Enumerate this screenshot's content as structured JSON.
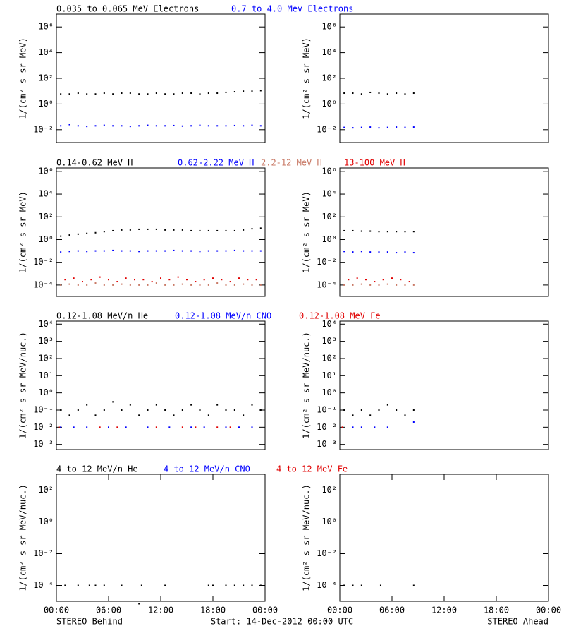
{
  "chart_data": [
    {
      "type": "scatter",
      "ylabel": "1/(cm² s sr MeV)",
      "yscale": "log",
      "xlim": [
        0,
        24
      ],
      "ylim": [
        0.001,
        10000000
      ],
      "yticks": [
        {
          "value": 0.01,
          "label": "10⁻²"
        },
        {
          "value": 1,
          "label": "10⁰"
        },
        {
          "value": 100,
          "label": "10²"
        },
        {
          "value": 10000,
          "label": "10⁴"
        },
        {
          "value": 1000000,
          "label": "10⁶"
        }
      ],
      "series": [
        {
          "name": "0.035 to 0.065 MeV Electrons",
          "color": "#000000",
          "x": [
            0.5,
            1.5,
            2.5,
            3.5,
            4.5,
            5.5,
            6.5,
            7.5,
            8.5,
            9.5,
            10.5,
            11.5,
            12.5,
            13.5,
            14.5,
            15.5,
            16.5,
            17.5,
            18.5,
            19.5,
            20.5,
            21.5,
            22.5,
            23.5
          ],
          "values": [
            6,
            6,
            7,
            6,
            6,
            7,
            6,
            7,
            7,
            6,
            6,
            7,
            6,
            6,
            7,
            7,
            6,
            7,
            7,
            8,
            9,
            10,
            10,
            11
          ]
        },
        {
          "name": "0.7 to 4.0 Mev Electrons",
          "color": "#0000ff",
          "x": [
            0.5,
            1.5,
            2.5,
            3.5,
            4.5,
            5.5,
            6.5,
            7.5,
            8.5,
            9.5,
            10.5,
            11.5,
            12.5,
            13.5,
            14.5,
            15.5,
            16.5,
            17.5,
            18.5,
            19.5,
            20.5,
            21.5,
            22.5,
            23.5
          ],
          "values": [
            0.02,
            0.025,
            0.02,
            0.018,
            0.02,
            0.022,
            0.02,
            0.02,
            0.018,
            0.02,
            0.022,
            0.02,
            0.02,
            0.021,
            0.019,
            0.02,
            0.022,
            0.02,
            0.02,
            0.02,
            0.021,
            0.02,
            0.022,
            0.02
          ]
        }
      ]
    },
    {
      "type": "scatter",
      "ylabel": "1/(cm² s sr MeV)",
      "yscale": "log",
      "xlim": [
        0,
        24
      ],
      "ylim": [
        0.001,
        10000000
      ],
      "yticks": [
        {
          "value": 0.01,
          "label": "10⁻²"
        },
        {
          "value": 1,
          "label": "10⁰"
        },
        {
          "value": 100,
          "label": "10²"
        },
        {
          "value": 10000,
          "label": "10⁴"
        },
        {
          "value": 1000000,
          "label": "10⁶"
        }
      ],
      "series": [
        {
          "color": "#000000",
          "x": [
            0.5,
            1.5,
            2.5,
            3.5,
            4.5,
            5.5,
            6.5,
            7.5,
            8.5
          ],
          "values": [
            7,
            7,
            6,
            8,
            7,
            6,
            7,
            6,
            7
          ]
        },
        {
          "color": "#0000ff",
          "x": [
            0.5,
            1.5,
            2.5,
            3.5,
            4.5,
            5.5,
            6.5,
            7.5,
            8.5
          ],
          "values": [
            0.015,
            0.014,
            0.015,
            0.016,
            0.014,
            0.015,
            0.016,
            0.015,
            0.016
          ]
        }
      ]
    },
    {
      "type": "scatter",
      "ylabel": "1/(cm² s sr MeV)",
      "yscale": "log",
      "xlim": [
        0,
        24
      ],
      "ylim": [
        1e-05,
        2000000
      ],
      "yticks": [
        {
          "value": 0.0001,
          "label": "10⁻⁴"
        },
        {
          "value": 0.01,
          "label": "10⁻²"
        },
        {
          "value": 1,
          "label": "10⁰"
        },
        {
          "value": 100,
          "label": "10²"
        },
        {
          "value": 10000,
          "label": "10⁴"
        },
        {
          "value": 1000000,
          "label": "10⁶"
        }
      ],
      "series": [
        {
          "name": "0.14-0.62 MeV H",
          "color": "#000000",
          "x": [
            0.5,
            1.5,
            2.5,
            3.5,
            4.5,
            5.5,
            6.5,
            7.5,
            8.5,
            9.5,
            10.5,
            11.5,
            12.5,
            13.5,
            14.5,
            15.5,
            16.5,
            17.5,
            18.5,
            19.5,
            20.5,
            21.5,
            22.5,
            23.5
          ],
          "values": [
            2,
            2.5,
            3,
            3.5,
            4,
            5,
            6,
            7,
            7,
            8,
            8,
            8,
            7,
            7,
            7,
            6,
            6,
            6,
            6,
            6,
            6,
            7,
            9,
            10
          ]
        },
        {
          "name": "0.62-2.22 MeV H",
          "color": "#0000ff",
          "x": [
            0.5,
            1.5,
            2.5,
            3.5,
            4.5,
            5.5,
            6.5,
            7.5,
            8.5,
            9.5,
            10.5,
            11.5,
            12.5,
            13.5,
            14.5,
            15.5,
            16.5,
            17.5,
            18.5,
            19.5,
            20.5,
            21.5,
            22.5,
            23.5
          ],
          "values": [
            0.08,
            0.09,
            0.1,
            0.09,
            0.1,
            0.1,
            0.11,
            0.1,
            0.1,
            0.09,
            0.1,
            0.1,
            0.1,
            0.11,
            0.1,
            0.1,
            0.09,
            0.1,
            0.1,
            0.1,
            0.11,
            0.1,
            0.1,
            0.1
          ]
        },
        {
          "name": "2.2-12 MeV H",
          "color": "#c87864",
          "x": [
            0.5,
            1.5,
            2.5,
            3.5,
            4.5,
            5.5,
            6.5,
            7.5,
            8.5,
            9.5,
            10.5,
            11.5,
            12.5,
            13.5,
            14.5,
            15.5,
            16.5,
            17.5,
            18.5,
            19.5,
            20.5,
            21.5,
            22.5,
            23.5
          ],
          "values": [
            0.0001,
            0.00012,
            0.0001,
            0.0001,
            0.00015,
            0.0001,
            0.0001,
            0.00012,
            0.0001,
            0.0001,
            0.0001,
            0.00015,
            0.0001,
            0.0001,
            0.00012,
            0.0001,
            0.0001,
            0.0001,
            0.00015,
            0.0001,
            0.0001,
            0.00012,
            0.0001,
            0.0001
          ]
        },
        {
          "name": "13-100 MeV H",
          "color": "#e00000",
          "x": [
            1,
            2,
            3,
            4,
            5,
            6,
            7,
            8,
            9,
            10,
            11,
            12,
            13,
            14,
            15,
            16,
            17,
            18,
            19,
            20,
            21,
            22,
            23
          ],
          "values": [
            0.0003,
            0.0004,
            0.0002,
            0.0003,
            0.0005,
            0.0003,
            0.0002,
            0.0004,
            0.0003,
            0.0003,
            0.0002,
            0.0004,
            0.0003,
            0.0005,
            0.0003,
            0.0002,
            0.0003,
            0.0004,
            0.0003,
            0.0002,
            0.0004,
            0.0003,
            0.0003
          ]
        }
      ]
    },
    {
      "type": "scatter",
      "ylabel": "1/(cm² s sr MeV)",
      "yscale": "log",
      "xlim": [
        0,
        24
      ],
      "ylim": [
        1e-05,
        2000000
      ],
      "yticks": [
        {
          "value": 0.0001,
          "label": "10⁻⁴"
        },
        {
          "value": 0.01,
          "label": "10⁻²"
        },
        {
          "value": 1,
          "label": "10⁰"
        },
        {
          "value": 100,
          "label": "10²"
        },
        {
          "value": 10000,
          "label": "10⁴"
        },
        {
          "value": 1000000,
          "label": "10⁶"
        }
      ],
      "series": [
        {
          "color": "#000000",
          "x": [
            0.5,
            1.5,
            2.5,
            3.5,
            4.5,
            5.5,
            6.5,
            7.5,
            8.5
          ],
          "values": [
            6,
            6,
            5.5,
            5.5,
            5,
            5,
            5,
            5,
            5
          ]
        },
        {
          "color": "#0000ff",
          "x": [
            0.5,
            1.5,
            2.5,
            3.5,
            4.5,
            5.5,
            6.5,
            7.5,
            8.5
          ],
          "values": [
            0.09,
            0.08,
            0.09,
            0.08,
            0.08,
            0.08,
            0.07,
            0.08,
            0.07
          ]
        },
        {
          "color": "#c87864",
          "x": [
            0.5,
            1.5,
            2.5,
            3.5,
            4.5,
            5.5,
            6.5,
            7.5,
            8.5
          ],
          "values": [
            0.0001,
            0.0001,
            0.00012,
            0.0001,
            0.0001,
            0.00012,
            0.0001,
            0.0001,
            0.0001
          ]
        },
        {
          "color": "#e00000",
          "x": [
            1,
            2,
            3,
            4,
            5,
            6,
            7,
            8
          ],
          "values": [
            0.0003,
            0.0004,
            0.0003,
            0.0002,
            0.0003,
            0.0004,
            0.0003,
            0.0002
          ]
        }
      ]
    },
    {
      "type": "scatter",
      "ylabel": "1/(cm² s sr MeV/nuc.)",
      "yscale": "log",
      "xlim": [
        0,
        24
      ],
      "ylim": [
        0.0005,
        15000
      ],
      "yticks": [
        {
          "value": 0.001,
          "label": "10⁻³"
        },
        {
          "value": 0.01,
          "label": "10⁻²"
        },
        {
          "value": 0.1,
          "label": "10⁻¹"
        },
        {
          "value": 1,
          "label": "10⁰"
        },
        {
          "value": 10,
          "label": "10¹"
        },
        {
          "value": 100,
          "label": "10²"
        },
        {
          "value": 1000,
          "label": "10³"
        },
        {
          "value": 10000,
          "label": "10⁴"
        }
      ],
      "series": [
        {
          "name": "0.12-1.08 MeV/n He",
          "color": "#000000",
          "x": [
            0.5,
            1.5,
            2.5,
            3.5,
            4.5,
            5.5,
            6.5,
            7.5,
            8.5,
            9.5,
            10.5,
            11.5,
            12.5,
            13.5,
            14.5,
            15.5,
            16.5,
            17.5,
            18.5,
            19.5,
            20.5,
            21.5,
            22.5,
            23.5
          ],
          "values": [
            0.1,
            0.05,
            0.1,
            0.2,
            0.05,
            0.1,
            0.3,
            0.1,
            0.2,
            0.05,
            0.1,
            0.2,
            0.1,
            0.05,
            0.1,
            0.2,
            0.1,
            0.05,
            0.2,
            0.1,
            0.1,
            0.05,
            0.2,
            0.1
          ]
        },
        {
          "name": "0.12-1.08 MeV/n CNO",
          "color": "#0000ff",
          "x": [
            0.5,
            2,
            3.5,
            6,
            8,
            10.5,
            13,
            15.5,
            17,
            19.5,
            21,
            22.5
          ],
          "values": [
            0.01,
            0.01,
            0.01,
            0.01,
            0.01,
            0.01,
            0.01,
            0.01,
            0.01,
            0.01,
            0.01,
            0.01
          ]
        },
        {
          "name": "0.12-1.08 MeV Fe",
          "color": "#e00000",
          "x": [
            0.3,
            5,
            7,
            11.5,
            14.5,
            16,
            18.5,
            20
          ],
          "values": [
            0.01,
            0.01,
            0.01,
            0.01,
            0.01,
            0.01,
            0.01,
            0.01
          ]
        }
      ]
    },
    {
      "type": "scatter",
      "ylabel": "1/(cm² s sr MeV/nuc.)",
      "yscale": "log",
      "xlim": [
        0,
        24
      ],
      "ylim": [
        0.0005,
        15000
      ],
      "yticks": [
        {
          "value": 0.001,
          "label": "10⁻³"
        },
        {
          "value": 0.01,
          "label": "10⁻²"
        },
        {
          "value": 0.1,
          "label": "10⁻¹"
        },
        {
          "value": 1,
          "label": "10⁰"
        },
        {
          "value": 10,
          "label": "10¹"
        },
        {
          "value": 100,
          "label": "10²"
        },
        {
          "value": 1000,
          "label": "10³"
        },
        {
          "value": 10000,
          "label": "10⁴"
        }
      ],
      "series": [
        {
          "color": "#000000",
          "x": [
            0.5,
            1.5,
            2.5,
            3.5,
            4.5,
            5.5,
            6.5,
            7.5,
            8.5
          ],
          "values": [
            0.1,
            0.05,
            0.1,
            0.05,
            0.1,
            0.2,
            0.1,
            0.05,
            0.1
          ]
        },
        {
          "color": "#0000ff",
          "x": [
            1.5,
            2.5,
            4,
            5.5,
            8.5
          ],
          "values": [
            0.01,
            0.01,
            0.01,
            0.01,
            0.02
          ]
        },
        {
          "color": "#e00000",
          "x": [
            0.3
          ],
          "values": [
            0.01
          ]
        }
      ]
    },
    {
      "type": "scatter",
      "ylabel": "1/(cm² s sr MeV/nuc.)",
      "yscale": "log",
      "xlim": [
        0,
        24
      ],
      "ylim": [
        1e-05,
        1000
      ],
      "yticks": [
        {
          "value": 0.0001,
          "label": "10⁻⁴"
        },
        {
          "value": 0.01,
          "label": "10⁻²"
        },
        {
          "value": 1,
          "label": "10⁰"
        },
        {
          "value": 100,
          "label": "10²"
        }
      ],
      "xticks": [
        {
          "value": 0,
          "label": "00:00"
        },
        {
          "value": 6,
          "label": "06:00"
        },
        {
          "value": 12,
          "label": "12:00"
        },
        {
          "value": 18,
          "label": "18:00"
        },
        {
          "value": 24,
          "label": "00:00"
        }
      ],
      "annotation": "STEREO Behind",
      "series": [
        {
          "name": "4 to 12 MeV/n He",
          "color": "#000000",
          "x": [
            1,
            2.5,
            3.8,
            4.5,
            5.5,
            7.5,
            9.5,
            9.8,
            12.5,
            17.5,
            18,
            19.5,
            20.5,
            21.5,
            22.5,
            23.5
          ],
          "values": [
            0.0001,
            0.0001,
            0.0001,
            0.0001,
            0.0001,
            0.0001,
            7e-06,
            0.0001,
            0.0001,
            0.0001,
            0.0001,
            0.0001,
            0.0001,
            0.0001,
            0.0001,
            0.0001
          ]
        },
        {
          "name": "4 to 12 MeV/n CNO",
          "color": "#0000ff",
          "x": [],
          "values": []
        },
        {
          "name": "4 to 12 MeV Fe",
          "color": "#e00000",
          "x": [],
          "values": []
        }
      ]
    },
    {
      "type": "scatter",
      "ylabel": "1/(cm² s sr MeV/nuc.)",
      "yscale": "log",
      "xlim": [
        0,
        24
      ],
      "ylim": [
        1e-05,
        1000
      ],
      "yticks": [
        {
          "value": 0.0001,
          "label": "10⁻⁴"
        },
        {
          "value": 0.01,
          "label": "10⁻²"
        },
        {
          "value": 1,
          "label": "10⁰"
        },
        {
          "value": 100,
          "label": "10²"
        }
      ],
      "xticks": [
        {
          "value": 0,
          "label": "00:00"
        },
        {
          "value": 6,
          "label": "06:00"
        },
        {
          "value": 12,
          "label": "12:00"
        },
        {
          "value": 18,
          "label": "18:00"
        },
        {
          "value": 24,
          "label": "00:00"
        }
      ],
      "annotation": "STEREO Ahead",
      "series": [
        {
          "color": "#000000",
          "x": [
            0.5,
            1.5,
            2.5,
            4.7,
            8.5
          ],
          "values": [
            0.0001,
            0.0001,
            0.0001,
            0.0001,
            0.0001
          ]
        }
      ]
    }
  ],
  "footer": "Start: 14-Dec-2012 00:00 UTC"
}
